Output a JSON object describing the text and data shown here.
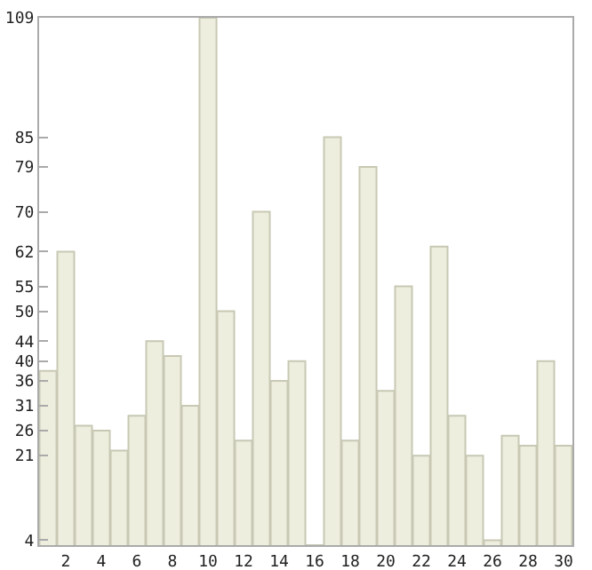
{
  "chart_data": {
    "type": "bar",
    "x": [
      1,
      2,
      3,
      4,
      5,
      6,
      7,
      8,
      9,
      10,
      11,
      12,
      13,
      14,
      15,
      16,
      17,
      18,
      19,
      20,
      21,
      22,
      23,
      24,
      25,
      26,
      27,
      28,
      29,
      30
    ],
    "values": [
      38,
      62,
      27,
      26,
      22,
      29,
      44,
      41,
      31,
      109,
      50,
      24,
      70,
      36,
      40,
      3,
      85,
      24,
      79,
      34,
      55,
      21,
      63,
      29,
      21,
      4,
      25,
      23,
      40,
      23
    ],
    "color": "#eeeedf",
    "xlim": [
      0.5,
      30.5
    ],
    "xticks": [
      2,
      4,
      6,
      8,
      10,
      12,
      14,
      16,
      18,
      20,
      22,
      24,
      26,
      28,
      30
    ],
    "ylim": [
      3,
      109
    ],
    "yticks": [
      4,
      21,
      26,
      31,
      36,
      40,
      44,
      50,
      55,
      62,
      70,
      79,
      85,
      109
    ],
    "grid": false
  }
}
